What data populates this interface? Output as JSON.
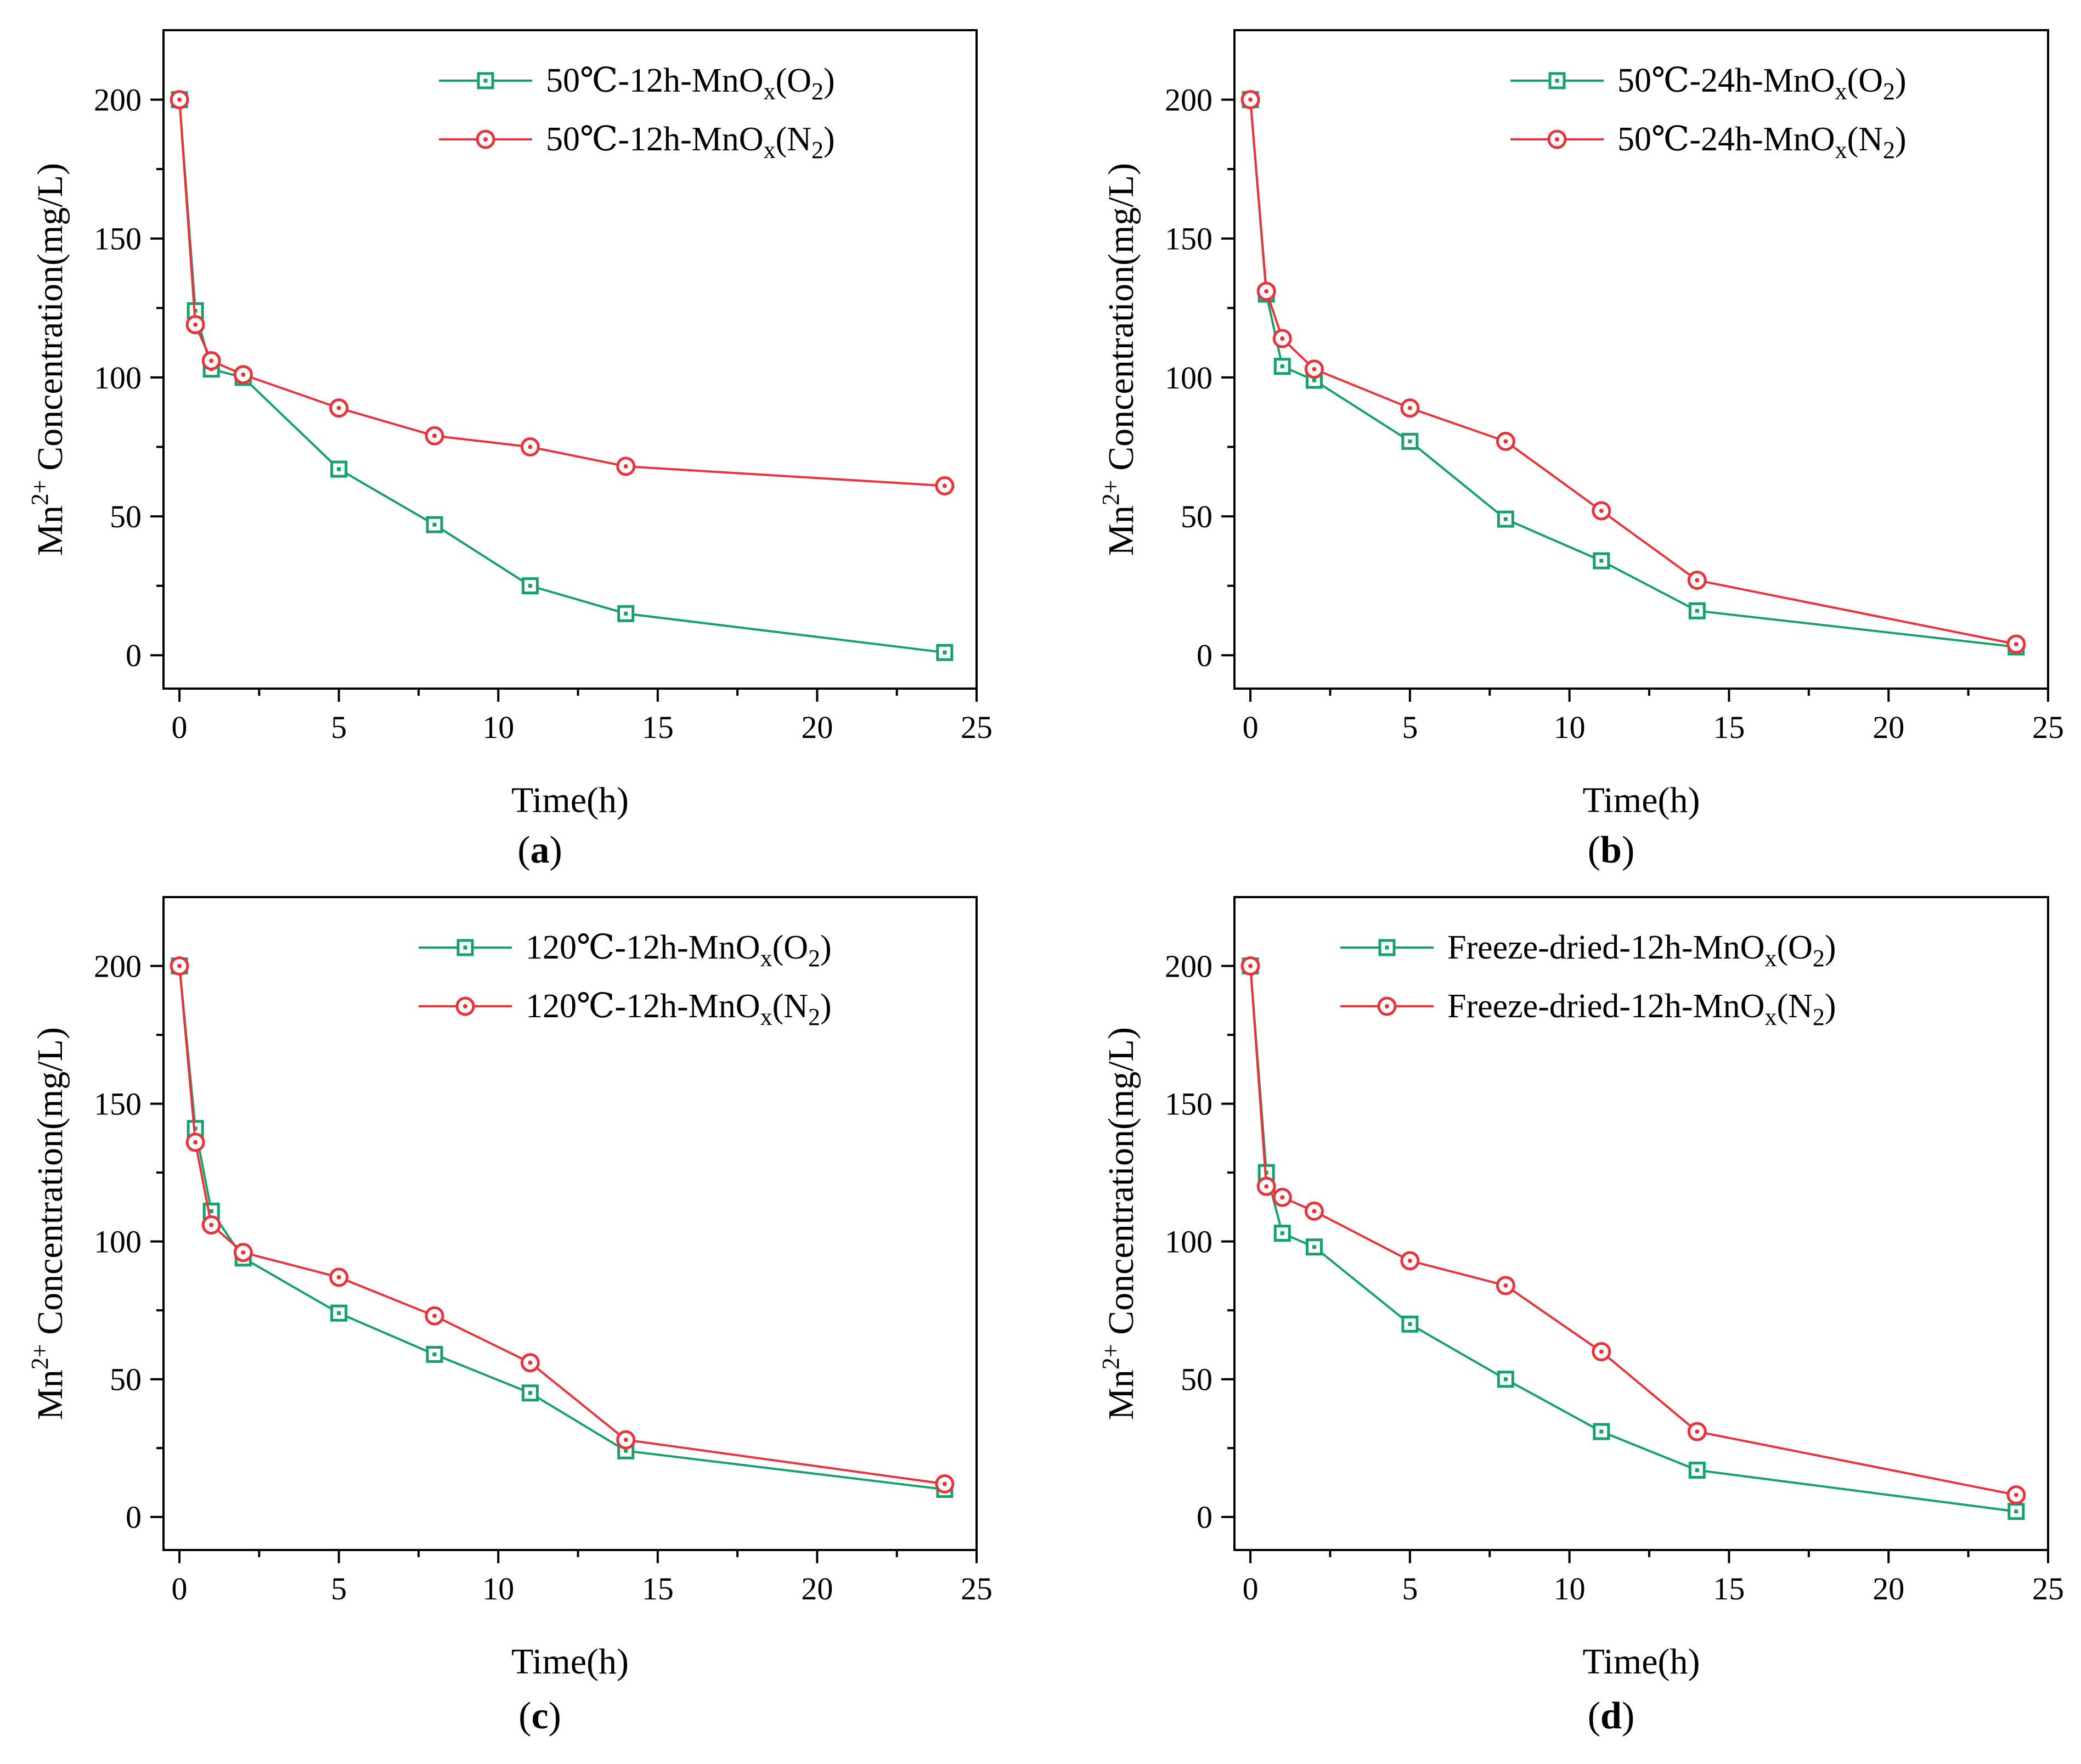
{
  "colors": {
    "o2": "#16a06a",
    "n2": "#e8333a"
  },
  "chart_data": [
    {
      "type": "line",
      "panel_label": "a",
      "xlabel": "Time(h)",
      "ylabel_parts": {
        "base": "Mn",
        "sup": "2+",
        "rest": " Concentration(mg/L)"
      },
      "xlim": [
        -0.5,
        25
      ],
      "ylim": [
        -12,
        225
      ],
      "xticks": [
        0,
        5,
        10,
        15,
        20,
        25
      ],
      "yticks": [
        0,
        50,
        100,
        150,
        200
      ],
      "grid": false,
      "legend_position": "top-right",
      "x": [
        0,
        0.5,
        1,
        2,
        5,
        8,
        11,
        14,
        24
      ],
      "series": [
        {
          "name": "50℃-12h-MnOx(O2)",
          "label_parts": {
            "pre": "50℃-12h-MnO",
            "sub1": "x",
            "mid": "(O",
            "sub2": "2",
            "post": ")"
          },
          "marker": "square",
          "color": "#16a06a",
          "values": [
            200,
            124,
            103,
            100,
            67,
            47,
            25,
            15,
            1
          ]
        },
        {
          "name": "50℃-12h-MnOx(N2)",
          "label_parts": {
            "pre": "50℃-12h-MnO",
            "sub1": "x",
            "mid": "(N",
            "sub2": "2",
            "post": ")"
          },
          "marker": "circle",
          "color": "#e8333a",
          "values": [
            200,
            119,
            106,
            101,
            89,
            79,
            75,
            68,
            61
          ]
        }
      ]
    },
    {
      "type": "line",
      "panel_label": "b",
      "xlabel": "Time(h)",
      "ylabel_parts": {
        "base": "Mn",
        "sup": "2+",
        "rest": " Concentration(mg/L)"
      },
      "xlim": [
        -0.5,
        25
      ],
      "ylim": [
        -12,
        225
      ],
      "xticks": [
        0,
        5,
        10,
        15,
        20,
        25
      ],
      "yticks": [
        0,
        50,
        100,
        150,
        200
      ],
      "grid": false,
      "legend_position": "top-right",
      "x": [
        0,
        0.5,
        1,
        2,
        5,
        8,
        11,
        14,
        24
      ],
      "series": [
        {
          "name": "50℃-24h-MnOx(O2)",
          "label_parts": {
            "pre": "50℃-24h-MnO",
            "sub1": "x",
            "mid": "(O",
            "sub2": "2",
            "post": ")"
          },
          "marker": "square",
          "color": "#16a06a",
          "values": [
            200,
            130,
            104,
            99,
            77,
            49,
            34,
            16,
            3
          ]
        },
        {
          "name": "50℃-24h-MnOx(N2)",
          "label_parts": {
            "pre": "50℃-24h-MnO",
            "sub1": "x",
            "mid": "(N",
            "sub2": "2",
            "post": ")"
          },
          "marker": "circle",
          "color": "#e8333a",
          "values": [
            200,
            131,
            114,
            103,
            89,
            77,
            52,
            27,
            4
          ]
        }
      ]
    },
    {
      "type": "line",
      "panel_label": "c",
      "xlabel": "Time(h)",
      "ylabel_parts": {
        "base": "Mn",
        "sup": "2+",
        "rest": " Concentration(mg/L)"
      },
      "xlim": [
        -0.5,
        25
      ],
      "ylim": [
        -12,
        225
      ],
      "xticks": [
        0,
        5,
        10,
        15,
        20,
        25
      ],
      "yticks": [
        0,
        50,
        100,
        150,
        200
      ],
      "grid": false,
      "legend_position": "top-right",
      "x": [
        0,
        0.5,
        1,
        2,
        5,
        8,
        11,
        14,
        24
      ],
      "series": [
        {
          "name": "120℃-12h-MnOx(O2)",
          "label_parts": {
            "pre": "120℃-12h-MnO",
            "sub1": "x",
            "mid": "(O",
            "sub2": "2",
            "post": ")"
          },
          "marker": "square",
          "color": "#16a06a",
          "values": [
            200,
            141,
            111,
            94,
            74,
            59,
            45,
            24,
            10
          ]
        },
        {
          "name": "120℃-12h-MnOx(N2)",
          "label_parts": {
            "pre": "120℃-12h-MnO",
            "sub1": "x",
            "mid": "(N",
            "sub2": "2",
            "post": ")"
          },
          "marker": "circle",
          "color": "#e8333a",
          "values": [
            200,
            136,
            106,
            96,
            87,
            73,
            56,
            28,
            12
          ]
        }
      ]
    },
    {
      "type": "line",
      "panel_label": "d",
      "xlabel": "Time(h)",
      "ylabel_parts": {
        "base": "Mn",
        "sup": "2+",
        "rest": " Concentration(mg/L)"
      },
      "xlim": [
        -0.5,
        25
      ],
      "ylim": [
        -12,
        225
      ],
      "xticks": [
        0,
        5,
        10,
        15,
        20,
        25
      ],
      "yticks": [
        0,
        50,
        100,
        150,
        200
      ],
      "grid": false,
      "legend_position": "top-right",
      "x": [
        0,
        0.5,
        1,
        2,
        5,
        8,
        11,
        14,
        24
      ],
      "series": [
        {
          "name": "Freeze-dried-12h-MnOx(O2)",
          "label_parts": {
            "pre": "Freeze-dried-12h-MnO",
            "sub1": "x",
            "mid": "(O",
            "sub2": "2",
            "post": ")"
          },
          "marker": "square",
          "color": "#16a06a",
          "values": [
            200,
            125,
            103,
            98,
            70,
            50,
            31,
            17,
            2
          ]
        },
        {
          "name": "Freeze-dried-12h-MnOx(N2)",
          "label_parts": {
            "pre": "Freeze-dried-12h-MnO",
            "sub1": "x",
            "mid": "(N",
            "sub2": "2",
            "post": ")"
          },
          "marker": "circle",
          "color": "#e8333a",
          "values": [
            200,
            120,
            116,
            111,
            93,
            84,
            60,
            31,
            8
          ]
        }
      ]
    }
  ]
}
